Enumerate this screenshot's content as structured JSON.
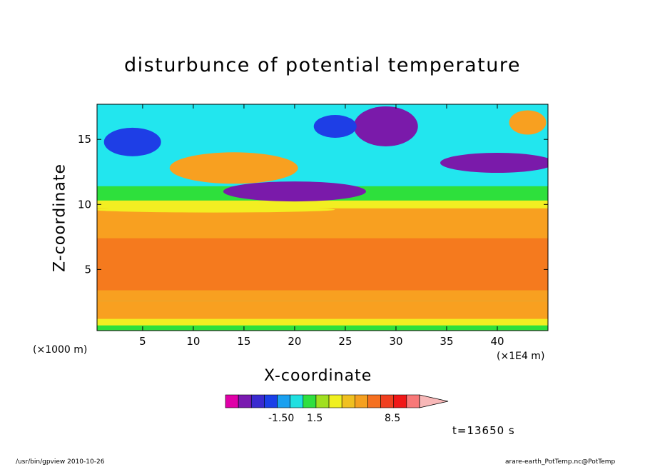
{
  "chart_data": {
    "type": "heatmap",
    "title": "disturbunce of potential temperature",
    "xlabel": "X-coordinate",
    "ylabel": "Z-coordinate",
    "x_unit_left": "(×1000 m)",
    "x_unit_right": "(×1E4 m)",
    "xticks": [
      5,
      10,
      15,
      20,
      25,
      30,
      35,
      40
    ],
    "yticks": [
      5,
      10,
      15
    ],
    "xlim": [
      0.5,
      45
    ],
    "ylim": [
      0.3,
      17.7
    ],
    "colorbar": {
      "labels": [
        "-1.50",
        "1.5",
        "8.5"
      ],
      "colors": [
        "#e000a8",
        "#7a1ab0",
        "#3a2ad0",
        "#1a40e8",
        "#1aa0f0",
        "#20e0e0",
        "#30e040",
        "#a0e020",
        "#f0f020",
        "#f0c020",
        "#f5a020",
        "#f57020",
        "#f04020",
        "#f01818",
        "#f87878",
        "#f8b8b8"
      ]
    },
    "colors": {
      "deep_orange": "#f57a1e",
      "orange": "#f8a020",
      "yellow": "#f2ee22",
      "green": "#2ee03c",
      "cyan": "#22e6ee",
      "blue": "#1e3ee6",
      "purple": "#7a1aaa",
      "magenta": "#e000a8"
    }
  },
  "annotation": {
    "time": "t=13650 s"
  },
  "footer": {
    "left": "/usr/bin/gpview   2010-10-26",
    "right": "arare-earth_PotTemp.nc@PotTemp"
  }
}
